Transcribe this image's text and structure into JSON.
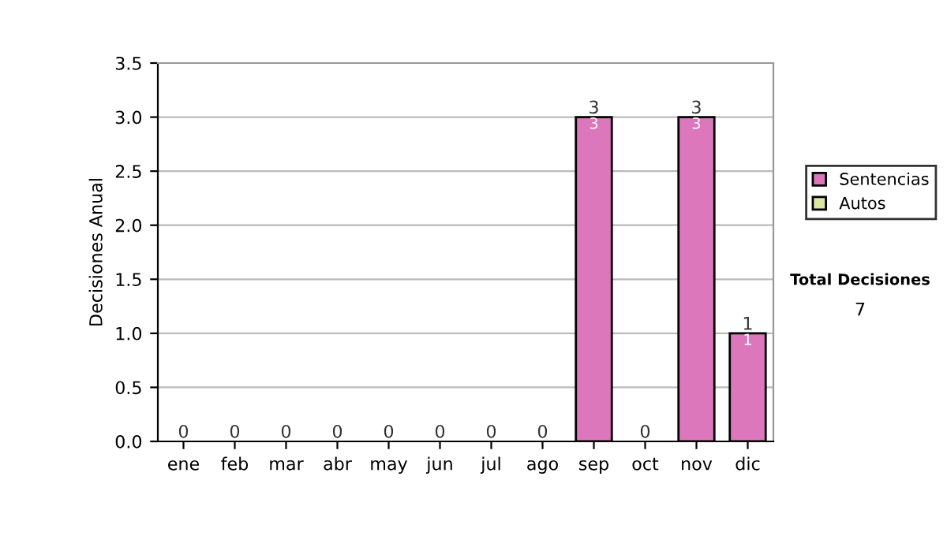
{
  "chart_data": {
    "type": "bar",
    "stacked": true,
    "ylabel": "Decisiones Anual",
    "categories": [
      "ene",
      "feb",
      "mar",
      "abr",
      "may",
      "jun",
      "jul",
      "ago",
      "sep",
      "oct",
      "nov",
      "dic"
    ],
    "series": [
      {
        "name": "Sentencias",
        "color": "#dd77bb",
        "values": [
          0,
          0,
          0,
          0,
          0,
          0,
          0,
          0,
          3,
          0,
          3,
          1
        ],
        "value_labels": [
          null,
          null,
          null,
          null,
          null,
          null,
          null,
          null,
          "3",
          null,
          "3",
          "1"
        ]
      },
      {
        "name": "Autos",
        "color": "#d8e8a0",
        "values": [
          0,
          0,
          0,
          0,
          0,
          0,
          0,
          0,
          0,
          0,
          0,
          0
        ]
      }
    ],
    "totals": [
      "0",
      "0",
      "0",
      "0",
      "0",
      "0",
      "0",
      "0",
      "3",
      "0",
      "3",
      "1"
    ],
    "ylim": [
      0,
      3.5
    ],
    "yticks": [
      "0.0",
      "0.5",
      "1.0",
      "1.5",
      "2.0",
      "2.5",
      "3.0",
      "3.5"
    ],
    "grid": "y",
    "legend": "right",
    "annotations": [
      "Total Decisiones",
      "7"
    ]
  }
}
